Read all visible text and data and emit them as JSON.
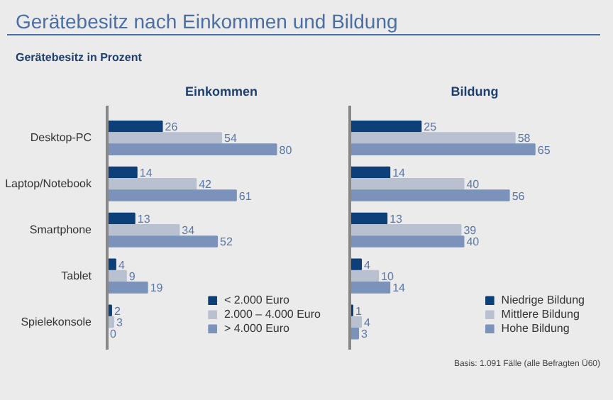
{
  "chart_data": [
    {
      "type": "bar",
      "orientation": "horizontal",
      "title": "Gerätebesitz nach Einkommen und Bildung",
      "subtitle": "Gerätebesitz in Prozent",
      "annotations": [
        "Einkommen"
      ],
      "categories": [
        "Desktop-PC",
        "Laptop/Notebook",
        "Smartphone",
        "Tablet",
        "Spielekonsole"
      ],
      "series": [
        {
          "name": "< 2.000 Euro",
          "color": "#0d3f78",
          "values": [
            26,
            14,
            13,
            4,
            2
          ]
        },
        {
          "name": "2.000 – 4.000 Euro",
          "color": "#b9c0d0",
          "values": [
            54,
            42,
            34,
            9,
            3
          ]
        },
        {
          "name": "> 4.000 Euro",
          "color": "#7b93bb",
          "values": [
            80,
            61,
            52,
            19,
            0
          ]
        }
      ],
      "data_labels": true,
      "legend": "bottom right",
      "tick_labels": "y"
    },
    {
      "type": "bar",
      "orientation": "horizontal",
      "title": "Bildung",
      "annotations": [
        "Basis: 1.091 Fälle (alle Befragten Ü60)"
      ],
      "categories": [
        null,
        null,
        null,
        null,
        null
      ],
      "series": [
        {
          "name": "Niedrige Bildung",
          "color": "#0d3f78",
          "values": [
            25,
            14,
            13,
            4,
            1
          ]
        },
        {
          "name": "Mittlere Bildung",
          "color": "#b9c0d0",
          "values": [
            58,
            40,
            39,
            10,
            4
          ]
        },
        {
          "name": "Hohe Bildung",
          "color": "#7b93bb",
          "values": [
            65,
            56,
            40,
            14,
            3
          ]
        }
      ],
      "data_labels": true,
      "legend": "bottom right",
      "tick_labels": false
    }
  ]
}
